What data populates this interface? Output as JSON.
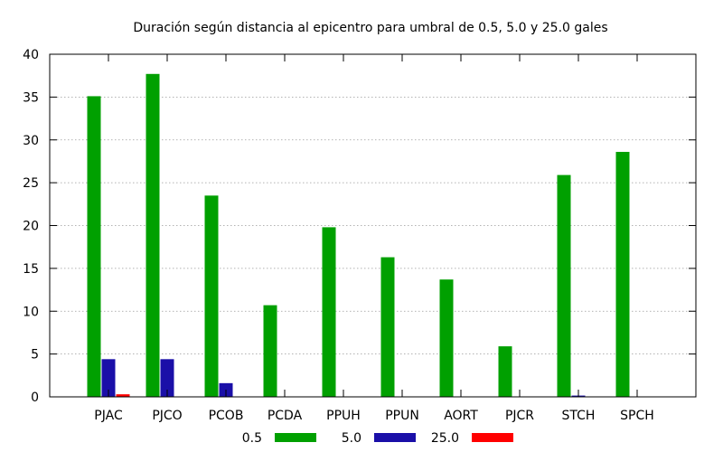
{
  "chart_data": {
    "type": "bar",
    "title": "Duración según distancia al epicentro para umbral de 0.5, 5.0 y 25.0 gales",
    "xlabel": "",
    "ylabel": "",
    "ylim": [
      0,
      40
    ],
    "yticks": [
      0,
      5,
      10,
      15,
      20,
      25,
      30,
      35,
      40
    ],
    "grid": true,
    "legend_position": "bottom",
    "categories": [
      "PJAC",
      "PJCO",
      "PCOB",
      "PCDA",
      "PPUH",
      "PPUN",
      "AORT",
      "PJCR",
      "STCH",
      "SPCH"
    ],
    "series": [
      {
        "name": "0.5",
        "color": "#00a000",
        "values": [
          35.1,
          37.7,
          23.5,
          10.7,
          19.8,
          16.3,
          13.7,
          5.9,
          25.9,
          28.6
        ]
      },
      {
        "name": "5.0",
        "color": "#1a0fa8",
        "values": [
          4.4,
          4.4,
          1.6,
          0,
          0,
          0,
          0,
          0,
          0.15,
          0
        ]
      },
      {
        "name": "25.0",
        "color": "#ff0000",
        "values": [
          0.3,
          0,
          0,
          0,
          0,
          0,
          0,
          0,
          0,
          0
        ]
      }
    ]
  }
}
